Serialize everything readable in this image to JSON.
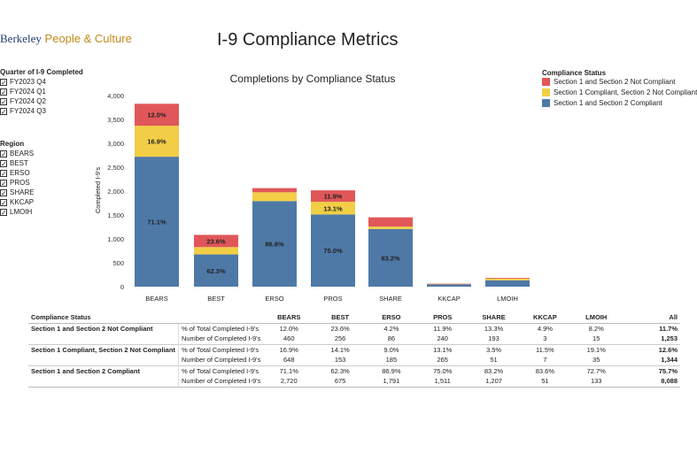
{
  "brand": {
    "org": "Berkeley",
    "unit": "People & Culture"
  },
  "title": "I-9 Compliance Metrics",
  "filters": {
    "quarter": {
      "title": "Quarter of I-9 Completed",
      "items": [
        "FY2023 Q4",
        "FY2024 Q1",
        "FY2024 Q2",
        "FY2024 Q3"
      ]
    },
    "region": {
      "title": "Region",
      "items": [
        "BEARS",
        "BEST",
        "ERSO",
        "PROS",
        "SHARE",
        "KKCAP",
        "LMOIH"
      ]
    },
    "check_glyph": "✓"
  },
  "legend": {
    "title": "Compliance Status",
    "items": [
      {
        "label": "Section 1 and Section 2 Not Compliant",
        "color": "#e15759"
      },
      {
        "label": "Section 1 Compliant, Section 2 Not Compliant",
        "color": "#f1ce45"
      },
      {
        "label": "Section 1 and Section 2 Compliant",
        "color": "#4e79a7"
      }
    ]
  },
  "chart_data": {
    "type": "bar",
    "stacked": true,
    "title": "Completions by Compliance Status",
    "xlabel": "",
    "ylabel": "Completed I-9's",
    "ylim": [
      0,
      4000
    ],
    "yticks": [
      "0",
      "500",
      "1,000",
      "1,500",
      "2,000",
      "2,500",
      "3,000",
      "3,500",
      "4,000"
    ],
    "categories": [
      "BEARS",
      "BEST",
      "ERSO",
      "PROS",
      "SHARE",
      "KKCAP",
      "LMOIH"
    ],
    "series": [
      {
        "name": "Section 1 and Section 2 Compliant",
        "color": "#4e79a7",
        "values": [
          2720,
          675,
          1791,
          1511,
          1207,
          51,
          133
        ],
        "labels": [
          "71.1%",
          "62.3%",
          "86.9%",
          "75.0%",
          "83.2%",
          "",
          ""
        ]
      },
      {
        "name": "Section 1 Compliant, Section 2 Not Compliant",
        "color": "#f1ce45",
        "values": [
          648,
          153,
          185,
          265,
          51,
          7,
          35
        ],
        "labels": [
          "16.9%",
          "",
          "",
          "13.1%",
          "",
          "",
          ""
        ]
      },
      {
        "name": "Section 1 and Section 2 Not Compliant",
        "color": "#e15759",
        "values": [
          460,
          256,
          86,
          240,
          193,
          3,
          15
        ],
        "labels": [
          "12.0%",
          "23.6%",
          "",
          "11.9%",
          "",
          "",
          ""
        ]
      }
    ]
  },
  "table": {
    "corner": "Compliance Status",
    "columns": [
      "BEARS",
      "BEST",
      "ERSO",
      "PROS",
      "SHARE",
      "KKCAP",
      "LMOIH",
      "All"
    ],
    "groups": [
      {
        "status": "Section 1 and Section 2 Not Compliant",
        "rows": [
          {
            "metric": "% of Total Completed I-9's",
            "values": [
              "12.0%",
              "23.6%",
              "4.2%",
              "11.9%",
              "13.3%",
              "4.9%",
              "8.2%",
              "11.7%"
            ]
          },
          {
            "metric": "Number of Completed I-9's",
            "values": [
              "460",
              "256",
              "86",
              "240",
              "193",
              "3",
              "15",
              "1,253"
            ]
          }
        ]
      },
      {
        "status": "Section 1 Compliant, Section 2 Not Compliant",
        "rows": [
          {
            "metric": "% of Total Completed I-9's",
            "values": [
              "16.9%",
              "14.1%",
              "9.0%",
              "13.1%",
              "3.5%",
              "11.5%",
              "19.1%",
              "12.6%"
            ]
          },
          {
            "metric": "Number of Completed I-9's",
            "values": [
              "648",
              "153",
              "185",
              "265",
              "51",
              "7",
              "35",
              "1,344"
            ]
          }
        ]
      },
      {
        "status": "Section 1 and Section 2 Compliant",
        "rows": [
          {
            "metric": "% of Total Completed I-9's",
            "values": [
              "71.1%",
              "62.3%",
              "86.9%",
              "75.0%",
              "83.2%",
              "83.6%",
              "72.7%",
              "75.7%"
            ]
          },
          {
            "metric": "Number of Completed I-9's",
            "values": [
              "2,720",
              "675",
              "1,791",
              "1,511",
              "1,207",
              "51",
              "133",
              "8,088"
            ]
          }
        ]
      }
    ]
  }
}
